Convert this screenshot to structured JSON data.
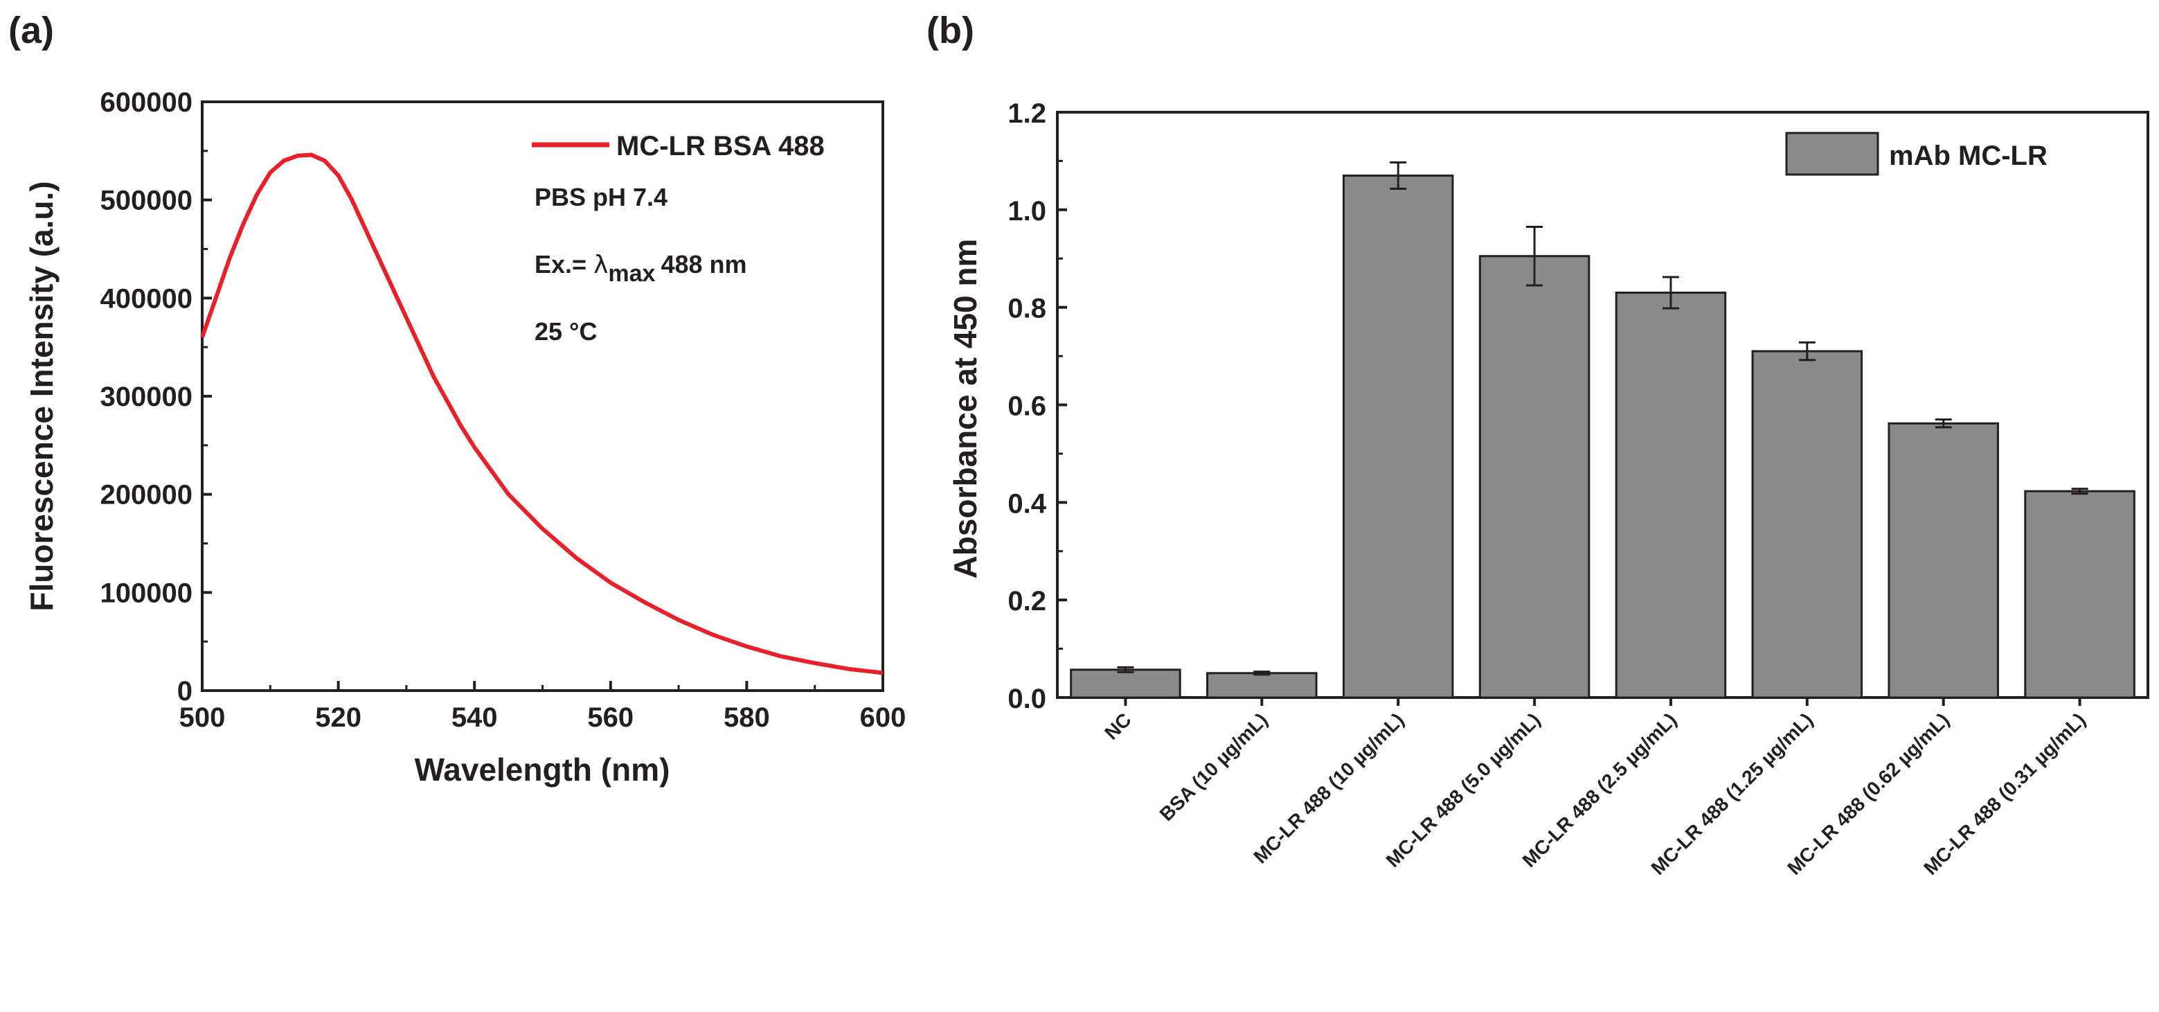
{
  "chart_data": [
    {
      "panel_label": "(a)",
      "type": "line",
      "title": "",
      "xlabel": "Wavelength (nm)",
      "ylabel": "Fluorescence Intensity (a.u.)",
      "xlim": [
        500,
        600
      ],
      "ylim": [
        0,
        600000
      ],
      "xticks": [
        500,
        520,
        540,
        560,
        580,
        600
      ],
      "yticks": [
        0,
        100000,
        200000,
        300000,
        400000,
        500000,
        600000
      ],
      "xtick_labels": [
        "500",
        "520",
        "540",
        "560",
        "580",
        "600"
      ],
      "ytick_labels": [
        "0",
        "100000",
        "200000",
        "300000",
        "400000",
        "500000",
        "600000"
      ],
      "legend": "top-right",
      "annotations": {
        "buffer": "PBS pH 7.4",
        "excitation_prefix": "Ex.=",
        "lambda": "λ",
        "subscript": "max",
        "excitation_value": "488 nm",
        "temperature": "25 °C"
      },
      "series": [
        {
          "name": "MC-LR BSA 488",
          "color": "#e8202a",
          "x": [
            500,
            502,
            504,
            506,
            508,
            510,
            512,
            514,
            516,
            518,
            520,
            522,
            524,
            526,
            528,
            530,
            532,
            534,
            536,
            538,
            540,
            545,
            550,
            555,
            560,
            565,
            570,
            575,
            580,
            585,
            590,
            595,
            600
          ],
          "y": [
            360000,
            400000,
            440000,
            475000,
            505000,
            528000,
            540000,
            545000,
            546000,
            540000,
            525000,
            500000,
            470000,
            440000,
            410000,
            380000,
            350000,
            320000,
            295000,
            270000,
            248000,
            200000,
            165000,
            135000,
            110000,
            90000,
            72000,
            57000,
            45000,
            35000,
            28000,
            22000,
            18000
          ]
        }
      ]
    },
    {
      "panel_label": "(b)",
      "type": "bar",
      "title": "",
      "xlabel": "",
      "ylabel": "Absorbance at 450 nm",
      "ylim": [
        0,
        1.2
      ],
      "yticks": [
        0,
        0.2,
        0.4,
        0.6,
        0.8,
        1.0,
        1.2
      ],
      "ytick_labels": [
        "0.0",
        "0.2",
        "0.4",
        "0.6",
        "0.8",
        "1.0",
        "1.2"
      ],
      "legend": "top-right",
      "bar_color": "#8a8a8a",
      "categories": [
        "NC",
        "BSA (10 µg/mL)",
        "MC-LR 488 (10 µg/mL)",
        "MC-LR 488 (5.0 µg/mL)",
        "MC-LR 488 (2.5 µg/mL)",
        "MC-LR 488 (1.25 µg/mL)",
        "MC-LR 488 (0.62 µg/mL)",
        "MC-LR 488 (0.31 µg/mL)"
      ],
      "series": [
        {
          "name": "mAb MC-LR",
          "values": [
            0.057,
            0.05,
            1.07,
            0.905,
            0.83,
            0.71,
            0.562,
            0.423
          ],
          "errors": [
            0.005,
            0.003,
            0.027,
            0.06,
            0.032,
            0.018,
            0.008,
            0.005
          ]
        }
      ]
    }
  ]
}
